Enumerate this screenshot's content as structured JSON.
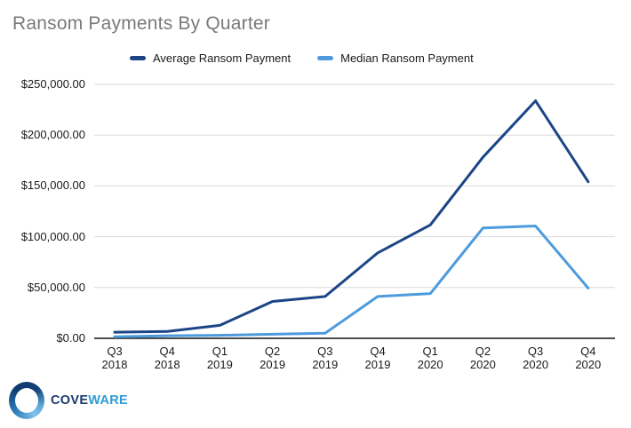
{
  "title": "Ransom Payments By Quarter",
  "legend": [
    {
      "label": "Average Ransom Payment",
      "color": "#1c4587"
    },
    {
      "label": "Median Ransom Payment",
      "color": "#4d9bdd"
    }
  ],
  "chart_data": {
    "type": "line",
    "title": "Ransom Payments By Quarter",
    "categories": [
      "Q3 2018",
      "Q4 2018",
      "Q1 2019",
      "Q2 2019",
      "Q3 2019",
      "Q4 2019",
      "Q1 2020",
      "Q2 2020",
      "Q3 2020",
      "Q4 2020"
    ],
    "series": [
      {
        "name": "Average Ransom Payment",
        "color": "#1c4587",
        "values": [
          5973,
          6733,
          12762,
          36295,
          41198,
          84116,
          111605,
          178254,
          233817,
          154108
        ]
      },
      {
        "name": "Median Ransom Payment",
        "color": "#4d9bdd",
        "values": [
          1500,
          2500,
          3000,
          4000,
          5000,
          41179,
          44021,
          108597,
          110532,
          49450
        ]
      }
    ],
    "xlabel": "",
    "ylabel": "",
    "ylim": [
      0,
      250000
    ],
    "grid": true,
    "legend_position": "top",
    "y_ticks": [
      {
        "value": 0,
        "label": "$0.00"
      },
      {
        "value": 50000,
        "label": "$50,000.00"
      },
      {
        "value": 100000,
        "label": "$100,000.00"
      },
      {
        "value": 150000,
        "label": "$150,000.00"
      },
      {
        "value": 200000,
        "label": "$200,000.00"
      },
      {
        "value": 250000,
        "label": "$250,000.00"
      }
    ]
  },
  "colors": {
    "gridline": "#dadada",
    "axis_line": "#333333",
    "title_text": "#7a7a7a",
    "label_text": "#1a1a1a"
  },
  "logo": {
    "text_primary": "COVE",
    "text_secondary": "WARE",
    "color_primary": "#1b3a6b",
    "color_secondary": "#2e9bd6"
  }
}
